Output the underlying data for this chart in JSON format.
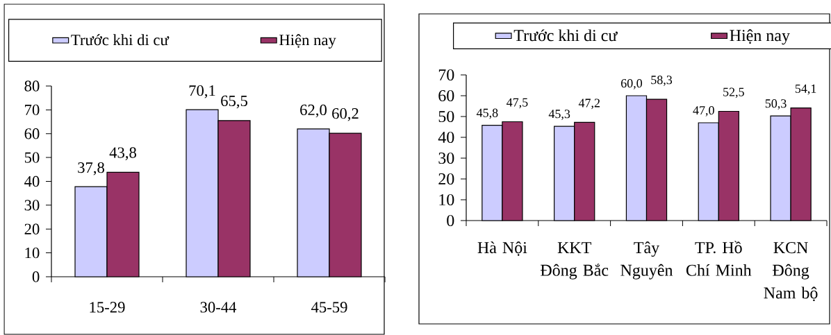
{
  "chart_data": [
    {
      "type": "bar",
      "categories": [
        "15-29",
        "30-44",
        "45-59"
      ],
      "series": [
        {
          "name": "Trước khi di cư",
          "color": "#ccccff",
          "values": [
            37.8,
            70.1,
            62.0
          ],
          "value_labels": [
            "37,8",
            "70,1",
            "62,0"
          ]
        },
        {
          "name": "Hiện nay",
          "color": "#993366",
          "values": [
            43.8,
            65.5,
            60.2
          ],
          "value_labels": [
            "43,8",
            "65,5",
            "60,2"
          ]
        }
      ],
      "ylim": [
        0,
        80
      ],
      "yticks": [
        0,
        10,
        20,
        30,
        40,
        50,
        60,
        70,
        80
      ],
      "legend": "top"
    },
    {
      "type": "bar",
      "categories": [
        "Hà Nội",
        "KKT Đông Bắc",
        "Tây Nguyên",
        "TP. Hồ Chí Minh",
        "KCN Đông Nam bộ"
      ],
      "series": [
        {
          "name": "Trước khi di cư",
          "color": "#ccccff",
          "values": [
            45.8,
            45.3,
            60.0,
            47.0,
            50.3
          ],
          "value_labels": [
            "45,8",
            "45,3",
            "60,0",
            "47,0",
            "50,3"
          ]
        },
        {
          "name": "Hiện nay",
          "color": "#993366",
          "values": [
            47.5,
            47.2,
            58.3,
            52.5,
            54.1
          ],
          "value_labels": [
            "47,5",
            "47,2",
            "58,3",
            "52,5",
            "54,1"
          ]
        }
      ],
      "ylim": [
        0,
        70
      ],
      "yticks": [
        0,
        10,
        20,
        30,
        40,
        50,
        60,
        70
      ],
      "legend": "top"
    }
  ]
}
